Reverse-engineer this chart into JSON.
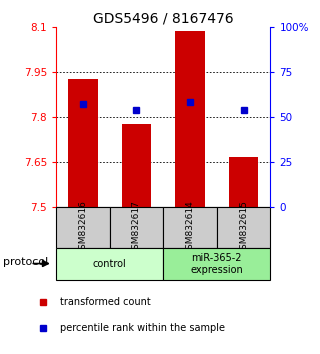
{
  "title": "GDS5496 / 8167476",
  "samples": [
    "GSM832616",
    "GSM832617",
    "GSM832614",
    "GSM832615"
  ],
  "red_bar_tops": [
    7.925,
    7.775,
    8.085,
    7.668
  ],
  "red_bar_bottom": 7.5,
  "blue_percentile": [
    57,
    54,
    58,
    54
  ],
  "ylim_left": [
    7.5,
    8.1
  ],
  "yticks_left": [
    7.5,
    7.65,
    7.8,
    7.95,
    8.1
  ],
  "ytick_labels_left": [
    "7.5",
    "7.65",
    "7.8",
    "7.95",
    "8.1"
  ],
  "ylim_right": [
    0,
    100
  ],
  "yticks_right": [
    0,
    25,
    50,
    75,
    100
  ],
  "ytick_labels_right": [
    "0",
    "25",
    "50",
    "75",
    "100%"
  ],
  "bar_color": "#cc0000",
  "square_color": "#0000cc",
  "groups": [
    {
      "label": "control",
      "indices": [
        0,
        1
      ],
      "color": "#ccffcc"
    },
    {
      "label": "miR-365-2\nexpression",
      "indices": [
        2,
        3
      ],
      "color": "#99ee99"
    }
  ],
  "protocol_label": "protocol",
  "legend_items": [
    {
      "color": "#cc0000",
      "label": "transformed count"
    },
    {
      "color": "#0000cc",
      "label": "percentile rank within the sample"
    }
  ],
  "title_fontsize": 10,
  "tick_fontsize": 7.5
}
